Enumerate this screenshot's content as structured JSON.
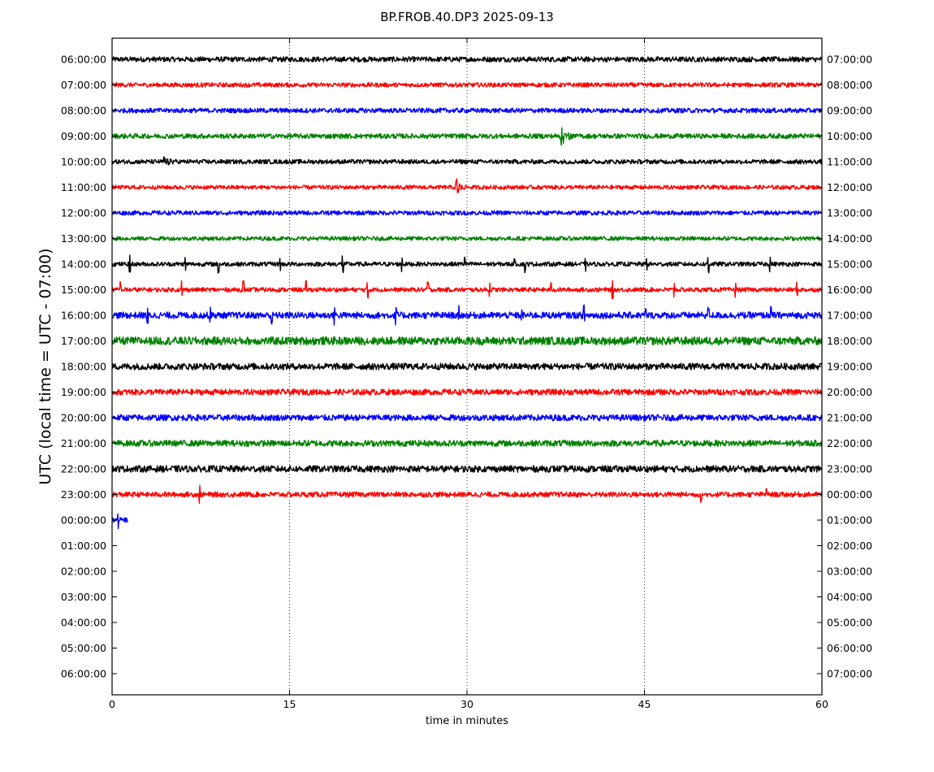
{
  "chart_data": {
    "type": "line",
    "title": "BP.FROB.40.DP3 2025-09-13",
    "xlabel": "time in minutes",
    "ylabel": "UTC (local time = UTC - 07:00)",
    "xlim": [
      0,
      60
    ],
    "x_ticks": [
      "0",
      "15",
      "30",
      "45",
      "60"
    ],
    "x_grid": "dotted vertical lines at 15, 30, 45",
    "left_labels": [
      "06:00:00",
      "07:00:00",
      "08:00:00",
      "09:00:00",
      "10:00:00",
      "11:00:00",
      "12:00:00",
      "13:00:00",
      "14:00:00",
      "15:00:00",
      "16:00:00",
      "17:00:00",
      "18:00:00",
      "19:00:00",
      "20:00:00",
      "21:00:00",
      "22:00:00",
      "23:00:00",
      "00:00:00",
      "01:00:00",
      "02:00:00",
      "03:00:00",
      "04:00:00",
      "05:00:00",
      "06:00:00"
    ],
    "right_labels": [
      "07:00:00",
      "08:00:00",
      "09:00:00",
      "10:00:00",
      "11:00:00",
      "12:00:00",
      "13:00:00",
      "14:00:00",
      "15:00:00",
      "16:00:00",
      "17:00:00",
      "18:00:00",
      "19:00:00",
      "20:00:00",
      "21:00:00",
      "22:00:00",
      "23:00:00",
      "00:00:00",
      "01:00:00",
      "02:00:00",
      "03:00:00",
      "04:00:00",
      "05:00:00",
      "06:00:00",
      "07:00:00"
    ],
    "traces": [
      {
        "row": 0,
        "color": "#000000",
        "x_end": 60,
        "noise": 0.35,
        "events": []
      },
      {
        "row": 1,
        "color": "#ff0000",
        "x_end": 60,
        "noise": 0.3,
        "events": []
      },
      {
        "row": 2,
        "color": "#0000ff",
        "x_end": 60,
        "noise": 0.32,
        "events": []
      },
      {
        "row": 3,
        "color": "#008000",
        "x_end": 60,
        "noise": 0.33,
        "events": [
          {
            "t": 38.0,
            "amp": 1.2,
            "dur": 1.2
          }
        ]
      },
      {
        "row": 4,
        "color": "#000000",
        "x_end": 60,
        "noise": 0.3,
        "events": [
          {
            "t": 4.5,
            "amp": 0.7,
            "dur": 0.8
          }
        ]
      },
      {
        "row": 5,
        "color": "#ff0000",
        "x_end": 60,
        "noise": 0.28,
        "events": [
          {
            "t": 29.2,
            "amp": 1.6,
            "dur": 0.5
          }
        ]
      },
      {
        "row": 6,
        "color": "#0000ff",
        "x_end": 60,
        "noise": 0.3,
        "events": []
      },
      {
        "row": 7,
        "color": "#008000",
        "x_end": 60,
        "noise": 0.28,
        "events": []
      },
      {
        "row": 8,
        "color": "#000000",
        "x_end": 60,
        "noise": 0.3,
        "spikes": [
          1.5,
          6.2,
          9.0,
          14.2,
          19.5,
          24.5,
          29.8,
          34.0,
          34.9,
          40.0,
          45.2,
          50.4,
          55.6
        ],
        "spike_amp": 1.0
      },
      {
        "row": 9,
        "color": "#ff0000",
        "x_end": 60,
        "noise": 0.3,
        "spikes": [
          0.7,
          5.9,
          11.1,
          16.4,
          21.6,
          26.7,
          31.9,
          37.1,
          42.3,
          47.5,
          52.7,
          57.9
        ],
        "spike_amp": 1.0
      },
      {
        "row": 10,
        "color": "#0000ff",
        "x_end": 60,
        "noise": 0.45,
        "spikes": [
          3.0,
          8.3,
          13.5,
          18.8,
          24.0,
          29.3,
          34.6,
          39.9,
          45.1,
          50.4,
          55.7
        ],
        "spike_amp": 1.0
      },
      {
        "row": 11,
        "color": "#008000",
        "x_end": 60,
        "noise": 0.55,
        "events": []
      },
      {
        "row": 12,
        "color": "#000000",
        "x_end": 60,
        "noise": 0.45,
        "events": []
      },
      {
        "row": 13,
        "color": "#ff0000",
        "x_end": 60,
        "noise": 0.4,
        "events": []
      },
      {
        "row": 14,
        "color": "#0000ff",
        "x_end": 60,
        "noise": 0.42,
        "events": []
      },
      {
        "row": 15,
        "color": "#008000",
        "x_end": 60,
        "noise": 0.42,
        "events": []
      },
      {
        "row": 16,
        "color": "#000000",
        "x_end": 60,
        "noise": 0.45,
        "events": []
      },
      {
        "row": 17,
        "color": "#ff0000",
        "x_end": 60,
        "noise": 0.35,
        "spikes": [
          7.4,
          49.8,
          55.3
        ],
        "spike_amp": 1.0
      },
      {
        "row": 18,
        "color": "#0000ff",
        "x_end": 1.3,
        "noise": 0.35,
        "spikes": [
          0.5
        ],
        "spike_amp": 0.9
      }
    ]
  }
}
